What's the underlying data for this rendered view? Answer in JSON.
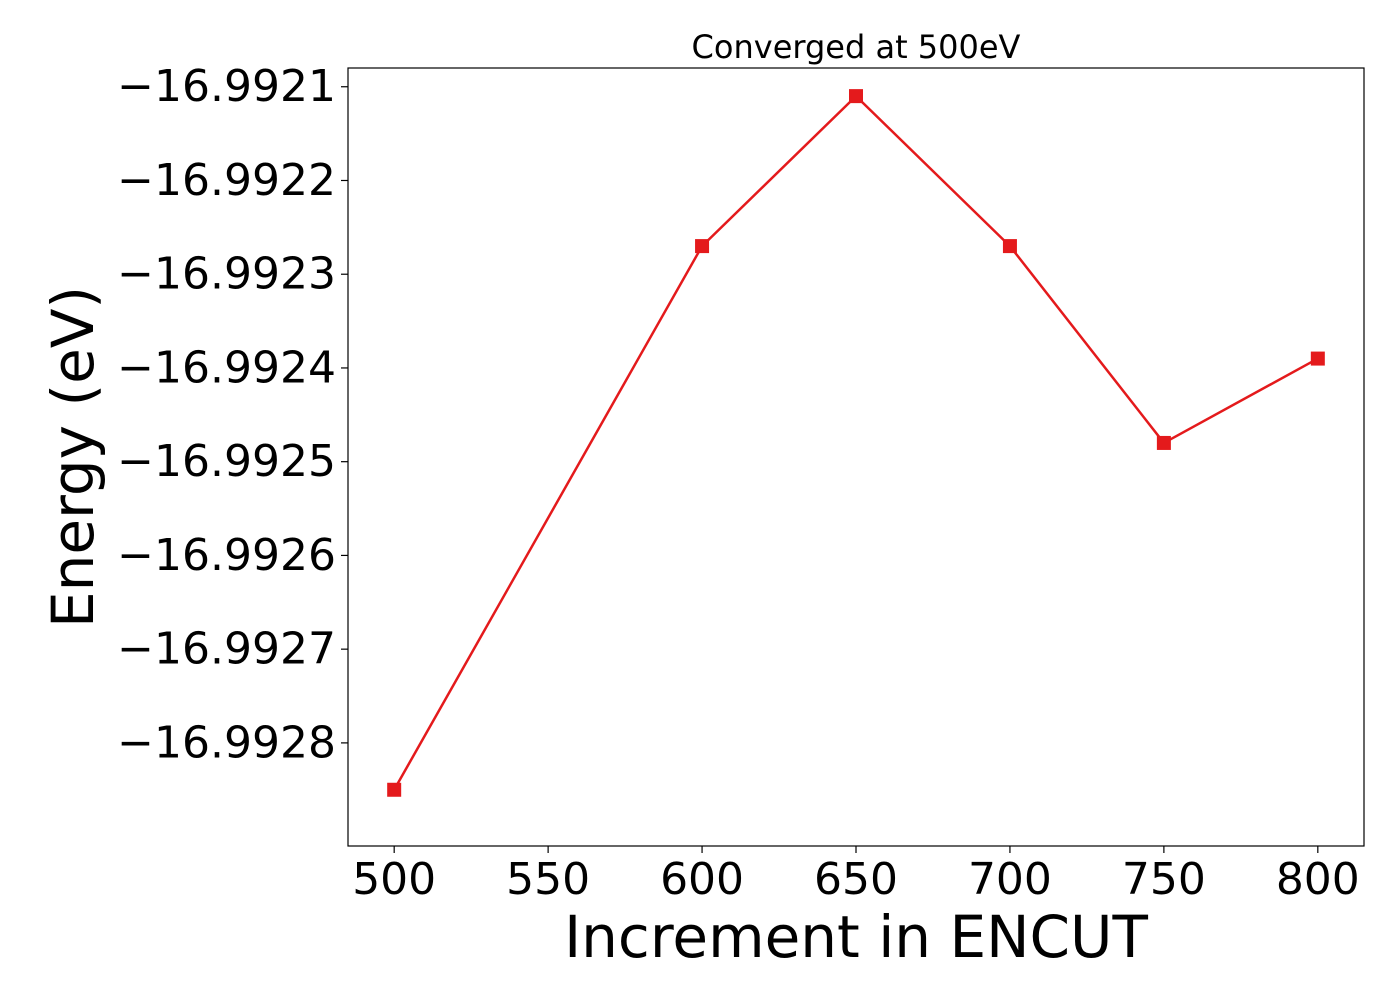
{
  "chart_data": {
    "type": "line",
    "title": "Converged at 500eV",
    "xlabel": "Increment in ENCUT",
    "ylabel": "Energy (eV)",
    "x": [
      500,
      600,
      650,
      700,
      750,
      800
    ],
    "series": [
      {
        "values": [
          -16.99285,
          -16.99227,
          -16.99211,
          -16.99227,
          -16.99248,
          -16.99239
        ],
        "color": "#e41a1c",
        "marker": "square"
      }
    ],
    "xlim": [
      485,
      815
    ],
    "ylim": [
      -16.99291,
      -16.99208
    ],
    "xticks": [
      500,
      550,
      600,
      650,
      700,
      750,
      800
    ],
    "xtick_labels": [
      "500",
      "550",
      "600",
      "650",
      "700",
      "750",
      "800"
    ],
    "yticks": [
      -16.9921,
      -16.9922,
      -16.9923,
      -16.9924,
      -16.9925,
      -16.9926,
      -16.9927,
      -16.9928
    ],
    "ytick_labels": [
      "−16.9921",
      "−16.9922",
      "−16.9923",
      "−16.9924",
      "−16.9925",
      "−16.9926",
      "−16.9927",
      "−16.9928"
    ],
    "grid": false,
    "legend": "none"
  }
}
